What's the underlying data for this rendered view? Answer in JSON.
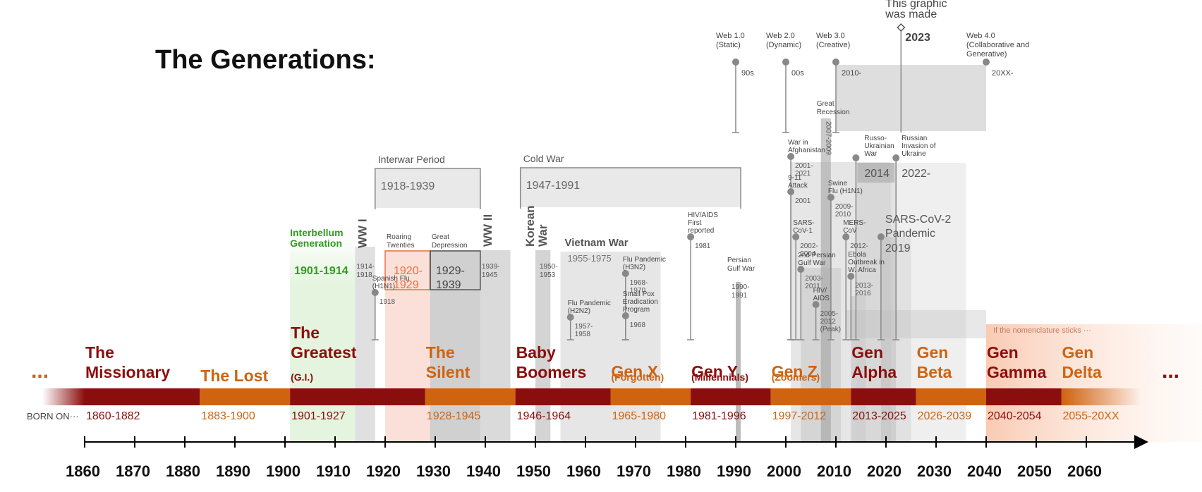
{
  "title": "The Generations:",
  "colors": {
    "dark_red": "#8b0e0e",
    "orange": "#cf6310",
    "green": "#2e9e1c",
    "salmon": "#f07040",
    "peach": "#fbe0d0",
    "grey": "#d6d6d6",
    "dark_grey": "#6e6e6e"
  },
  "timeline": {
    "ellipsis": "...",
    "born_on": "BORN ON···",
    "decades": [
      "1860",
      "1870",
      "1880",
      "1890",
      "1900",
      "1910",
      "1920",
      "1930",
      "1940",
      "1950",
      "1960",
      "1970",
      "1980",
      "1990",
      "2000",
      "2010",
      "2020",
      "2030",
      "2040",
      "2050",
      "2060"
    ]
  },
  "generations": [
    {
      "name_lines": [
        "The",
        "Missionary"
      ],
      "sub": "",
      "years": "1860-1882",
      "start": 1860,
      "end": 1882,
      "color": "dark_red"
    },
    {
      "name_lines": [
        "The Lost"
      ],
      "sub": "",
      "years": "1883-1900",
      "start": 1883,
      "end": 1900,
      "color": "orange"
    },
    {
      "name_lines": [
        "The",
        "Greatest"
      ],
      "sub": "(G.I.)",
      "years": "1901-1927",
      "start": 1901,
      "end": 1927,
      "color": "dark_red"
    },
    {
      "name_lines": [
        "The",
        "Silent"
      ],
      "sub": "",
      "years": "1928-1945",
      "start": 1928,
      "end": 1945,
      "color": "orange"
    },
    {
      "name_lines": [
        "Baby",
        "Boomers"
      ],
      "sub": "",
      "years": "1946-1964",
      "start": 1946,
      "end": 1964,
      "color": "dark_red"
    },
    {
      "name_lines": [
        "Gen X"
      ],
      "sub": "(Forgotten)",
      "years": "1965-1980",
      "start": 1965,
      "end": 1980,
      "color": "orange"
    },
    {
      "name_lines": [
        "Gen Y"
      ],
      "sub": "(Millennials)",
      "years": "1981-1996",
      "start": 1981,
      "end": 1996,
      "color": "dark_red"
    },
    {
      "name_lines": [
        "Gen Z"
      ],
      "sub": "(Zoomers)",
      "years": "1997-2012",
      "start": 1997,
      "end": 2012,
      "color": "orange"
    },
    {
      "name_lines": [
        "Gen",
        "Alpha"
      ],
      "sub": "",
      "years": "2013-2025",
      "start": 2013,
      "end": 2025,
      "color": "dark_red"
    },
    {
      "name_lines": [
        "Gen",
        "Beta"
      ],
      "sub": "",
      "years": "2026-2039",
      "start": 2026,
      "end": 2039,
      "color": "orange"
    },
    {
      "name_lines": [
        "Gen",
        "Gamma"
      ],
      "sub": "",
      "years": "2040-2054",
      "start": 2040,
      "end": 2054,
      "color": "dark_red"
    },
    {
      "name_lines": [
        "Gen",
        "Delta"
      ],
      "sub": "",
      "years": "2055-20XX",
      "start": 2055,
      "end": 2070,
      "color": "orange"
    }
  ],
  "nomenclature_note": "If the nomenclature sticks ···",
  "interbellum": {
    "lines": [
      "Interbellum",
      "Generation"
    ],
    "years": "1901-1914",
    "start": 1901,
    "end": 1914
  },
  "interwar": {
    "label": "Interwar Period",
    "years": "1918-1939",
    "start": 1918,
    "end": 1939
  },
  "cold_war": {
    "label": "Cold War",
    "years": "1947-1991",
    "start": 1947,
    "end": 1991
  },
  "ww1": {
    "label": "WW I",
    "years": [
      "1914-",
      "1918"
    ],
    "start": 1914,
    "end": 1918
  },
  "ww2": {
    "label": "WW II",
    "years": [
      "1939-",
      "1945"
    ],
    "start": 1939,
    "end": 1945
  },
  "roaring_twenties": {
    "lines": [
      "Roaring",
      "Twenties"
    ],
    "years": [
      "1920-",
      "1929"
    ],
    "start": 1920,
    "end": 1929
  },
  "great_depression": {
    "lines": [
      "Great",
      "Depression"
    ],
    "years": [
      "1929-",
      "1939"
    ],
    "start": 1929,
    "end": 1939
  },
  "korean_war": {
    "lines": [
      "Korean",
      "War"
    ],
    "years": [
      "1950-",
      "1953"
    ],
    "start": 1950,
    "end": 1953
  },
  "vietnam_war": {
    "label": "Vietnam War",
    "years": "1955-1975",
    "start": 1955,
    "end": 1975
  },
  "persian_gulf": {
    "lines": [
      "Persian",
      "Gulf War"
    ],
    "years": [
      "1990-",
      "1991"
    ],
    "start": 1990,
    "end": 1991
  },
  "pin_events": [
    {
      "name": "spanish-flu",
      "year": 1918,
      "lines": [
        "Spanish Flu",
        "(H1N1)"
      ],
      "year_lines": [
        "1918"
      ],
      "level": 415
    },
    {
      "name": "flu-pandemic-1957",
      "year": 1957,
      "lines": [
        "Flu Pandemic",
        "(H2N2)"
      ],
      "year_lines": [
        "1957-",
        "1958"
      ],
      "level": 450
    },
    {
      "name": "smallpox",
      "year": 1968,
      "lines": [
        "Small Pox",
        "Eradication",
        "Program"
      ],
      "year_lines": [
        "1968"
      ],
      "level": 448
    },
    {
      "name": "flu-pandemic-1968",
      "year": 1968,
      "lines": [
        "Flu Pandemic",
        "(H3N2)"
      ],
      "year_lines": [
        "1968-",
        "1970"
      ],
      "level": 388
    },
    {
      "name": "hiv-aids",
      "year": 1981,
      "lines": [
        "HIV/AIDS",
        "First",
        "reported"
      ],
      "year_lines": [
        "1981"
      ],
      "level": 336
    },
    {
      "name": "war-afghanistan",
      "year": 2001,
      "lines": [
        "War in",
        "Afghanistan"
      ],
      "year_lines": [
        "2001-",
        "2021"
      ],
      "level": 222
    },
    {
      "name": "nine-eleven",
      "year": 2001,
      "lines": [
        "9-11",
        "Attack"
      ],
      "year_lines": [
        "2001"
      ],
      "level": 272
    },
    {
      "name": "sars-cov-1",
      "year": 2002,
      "lines": [
        "SARS-",
        "CoV-1"
      ],
      "year_lines": [
        "2002-",
        "2004"
      ],
      "level": 336
    },
    {
      "name": "second-persian-gulf",
      "year": 2003,
      "lines": [
        "2nd Persian",
        "Gulf War"
      ],
      "year_lines": [
        "2003-",
        "2011"
      ],
      "level": 382
    },
    {
      "name": "hiv-aids-peak",
      "year": 2006,
      "lines": [
        "HIV/",
        "AIDS"
      ],
      "year_lines": [
        "2005-",
        "2012",
        "(Peak)"
      ],
      "level": 432
    },
    {
      "name": "swine-flu",
      "year": 2009,
      "lines": [
        "Swine",
        "Flu (H1N1)"
      ],
      "year_lines": [
        "2009-",
        "2010"
      ],
      "level": 280
    },
    {
      "name": "mers-cov",
      "year": 2012,
      "lines": [
        "MERS-",
        "CoV"
      ],
      "year_lines": [
        "2012-"
      ],
      "level": 336
    },
    {
      "name": "ebola",
      "year": 2013,
      "lines": [
        "Ebola",
        "Outbreak in",
        "W. Africa"
      ],
      "year_lines": [
        "2013-",
        "2016"
      ],
      "level": 392
    }
  ],
  "great_recession": {
    "lines": [
      "Great",
      "Recession"
    ],
    "years": "2007-2009",
    "start": 2007,
    "end": 2009
  },
  "russo_ukrainian": {
    "lines": [
      "Russo-",
      "Ukrainian",
      "War"
    ],
    "years": "2014",
    "start": 2014,
    "end": 2022
  },
  "russian_invasion": {
    "lines": [
      "Russian",
      "Invasion of",
      "Ukraine"
    ],
    "years": "2022-",
    "start": 2022,
    "end": 2036
  },
  "sars_cov2": {
    "lines": [
      "SARS-CoV-2",
      "Pandemic"
    ],
    "years": "2019",
    "start": 2019,
    "end": 2025
  },
  "web_eras": [
    {
      "lines": [
        "Web 1.0",
        "(Static)"
      ],
      "year_label": "90s",
      "year": 1990,
      "shade_to": null
    },
    {
      "lines": [
        "Web 2.0",
        "(Dynamic)"
      ],
      "year_label": "00s",
      "year": 2000,
      "shade_to": null
    },
    {
      "lines": [
        "Web 3.0",
        "(Creative)"
      ],
      "year_label": "2010-",
      "year": 2010,
      "shade_to": 2040
    },
    {
      "lines": [
        "Web 4.0",
        "(Collaborative and",
        "Generative)"
      ],
      "year_label": "20XX-",
      "year": 2040,
      "shade_to": null
    }
  ],
  "made_marker": {
    "lines": [
      "This graphic",
      "was made"
    ],
    "year_label": "2023",
    "year": 2023
  }
}
